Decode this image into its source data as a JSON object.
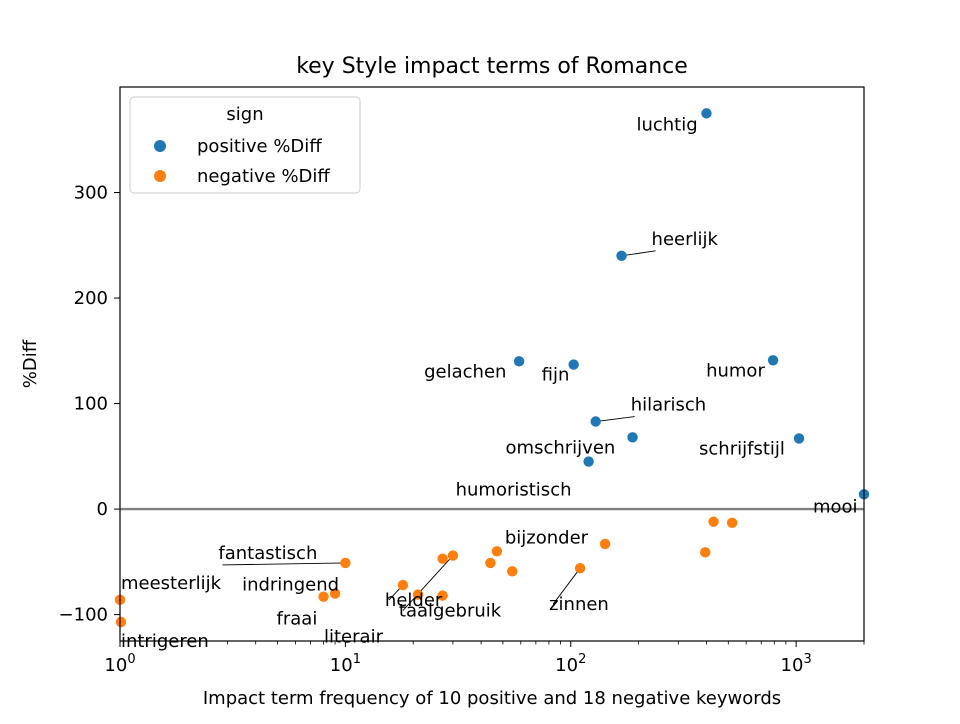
{
  "chart_data": {
    "type": "scatter",
    "title": "key Style impact terms of Romance",
    "xlabel": "Impact term frequency of 10 positive and 18 negative keywords",
    "ylabel": "%Diff",
    "xscale": "log",
    "xlim": [
      1,
      2000
    ],
    "ylim": [
      -125,
      400
    ],
    "x_ticks": [
      {
        "value": 1,
        "base": "10",
        "exp": "0"
      },
      {
        "value": 10,
        "base": "10",
        "exp": "1"
      },
      {
        "value": 100,
        "base": "10",
        "exp": "2"
      },
      {
        "value": 1000,
        "base": "10",
        "exp": "3"
      }
    ],
    "y_ticks": [
      {
        "value": -100,
        "label": "−100"
      },
      {
        "value": 0,
        "label": "0"
      },
      {
        "value": 100,
        "label": "100"
      },
      {
        "value": 200,
        "label": "200"
      },
      {
        "value": 300,
        "label": "300"
      }
    ],
    "zero_line": true,
    "grid": false,
    "legend": {
      "title": "sign",
      "placement": "top-left",
      "entries": [
        {
          "label": "positive %Diff",
          "color": "#1f77b4"
        },
        {
          "label": "negative %Diff",
          "color": "#ff7f0e"
        }
      ]
    },
    "series": [
      {
        "name": "positive %Diff",
        "color": "#1f77b4",
        "points": [
          {
            "x": 400,
            "y": 375,
            "label": "luchtig"
          },
          {
            "x": 168,
            "y": 240,
            "label": "heerlijk"
          },
          {
            "x": 59,
            "y": 140,
            "label": "gelachen"
          },
          {
            "x": 103,
            "y": 137,
            "label": "fijn"
          },
          {
            "x": 790,
            "y": 141,
            "label": "humor"
          },
          {
            "x": 129,
            "y": 83,
            "label": "hilarisch"
          },
          {
            "x": 188,
            "y": 68,
            "label": "omschrijven"
          },
          {
            "x": 1030,
            "y": 67,
            "label": "schrijfstijl"
          },
          {
            "x": 120,
            "y": 45,
            "label": "humoristisch"
          },
          {
            "x": 2000,
            "y": 14,
            "label": "mooi"
          }
        ]
      },
      {
        "name": "negative %Diff",
        "color": "#ff7f0e",
        "points": [
          {
            "x": 1,
            "y": -86,
            "label": "meesterlijk"
          },
          {
            "x": 1.01,
            "y": -107,
            "label": "intrigeren"
          },
          {
            "x": 10,
            "y": -51,
            "label": "fantastisch"
          },
          {
            "x": 9,
            "y": -80,
            "label": "indringend"
          },
          {
            "x": 8,
            "y": -83,
            "label": "fraai"
          },
          {
            "x": 18,
            "y": -72,
            "label": "helder"
          },
          {
            "x": 21,
            "y": -81,
            "label": "literair"
          },
          {
            "x": 27,
            "y": -82,
            "label": ""
          },
          {
            "x": 27,
            "y": -47,
            "label": ""
          },
          {
            "x": 30,
            "y": -44,
            "label": "taalgebruik"
          },
          {
            "x": 44,
            "y": -51,
            "label": ""
          },
          {
            "x": 47,
            "y": -40,
            "label": "bijzonder"
          },
          {
            "x": 55,
            "y": -59,
            "label": ""
          },
          {
            "x": 110,
            "y": -56,
            "label": "zinnen"
          },
          {
            "x": 142,
            "y": -33,
            "label": ""
          },
          {
            "x": 395,
            "y": -41,
            "label": ""
          },
          {
            "x": 430,
            "y": -12,
            "label": ""
          },
          {
            "x": 520,
            "y": -13,
            "label": ""
          }
        ]
      }
    ]
  }
}
